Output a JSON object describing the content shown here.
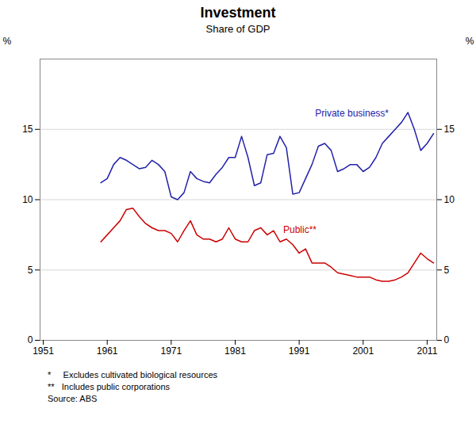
{
  "chart_data": {
    "type": "line",
    "title": "Investment",
    "subtitle": "Share of GDP",
    "ylabel": "%",
    "y2label": "%",
    "x": [
      1960,
      1961,
      1962,
      1963,
      1964,
      1965,
      1966,
      1967,
      1968,
      1969,
      1970,
      1971,
      1972,
      1973,
      1974,
      1975,
      1976,
      1977,
      1978,
      1979,
      1980,
      1981,
      1982,
      1983,
      1984,
      1985,
      1986,
      1987,
      1988,
      1989,
      1990,
      1991,
      1992,
      1993,
      1994,
      1995,
      1996,
      1997,
      1998,
      1999,
      2000,
      2001,
      2002,
      2003,
      2004,
      2005,
      2006,
      2007,
      2008,
      2009,
      2010,
      2011,
      2012
    ],
    "series": [
      {
        "name": "Private business*",
        "color": "#2222aa",
        "values": [
          11.2,
          11.5,
          12.5,
          13.0,
          12.8,
          12.5,
          12.2,
          12.3,
          12.8,
          12.5,
          12.0,
          10.2,
          10.0,
          10.5,
          12.0,
          11.5,
          11.3,
          11.2,
          11.8,
          12.3,
          13.0,
          13.0,
          14.5,
          13.0,
          11.0,
          11.2,
          13.2,
          13.3,
          14.5,
          13.7,
          10.4,
          10.5,
          11.5,
          12.5,
          13.8,
          14.0,
          13.5,
          12.0,
          12.2,
          12.5,
          12.5,
          12.0,
          12.3,
          13.0,
          14.0,
          14.5,
          15.0,
          15.5,
          16.2,
          15.0,
          13.5,
          14.0,
          14.7
        ]
      },
      {
        "name": "Public**",
        "color": "#cc0000",
        "values": [
          7.0,
          7.5,
          8.0,
          8.5,
          9.3,
          9.4,
          8.8,
          8.3,
          8.0,
          7.8,
          7.8,
          7.6,
          7.0,
          7.8,
          8.5,
          7.5,
          7.2,
          7.2,
          7.0,
          7.2,
          8.0,
          7.2,
          7.0,
          7.0,
          7.8,
          8.0,
          7.5,
          7.8,
          7.0,
          7.2,
          6.8,
          6.2,
          6.5,
          5.5,
          5.5,
          5.5,
          5.2,
          4.8,
          4.7,
          4.6,
          4.5,
          4.5,
          4.5,
          4.3,
          4.2,
          4.2,
          4.3,
          4.5,
          4.8,
          5.5,
          6.2,
          5.8,
          5.5
        ]
      }
    ],
    "annotations": [
      {
        "text": "Private business*",
        "x": 1993.5,
        "y": 15.8,
        "color": "#2222aa"
      },
      {
        "text": "Public**",
        "x": 1988.5,
        "y": 7.5,
        "color": "#cc0000"
      }
    ],
    "footnotes": [
      "*     Excludes cultivated biological resources",
      "**   Includes public corporations",
      "Source: ABS"
    ],
    "xlim": [
      1950.5,
      2012.5
    ],
    "xticks": [
      1951,
      1961,
      1971,
      1981,
      1991,
      2001,
      2011
    ],
    "ylim": [
      0,
      20
    ],
    "yticks": [
      0,
      5,
      10,
      15
    ],
    "y2lim": [
      0,
      20
    ],
    "y2ticks": [
      0,
      5,
      10,
      15
    ],
    "grid": true
  }
}
